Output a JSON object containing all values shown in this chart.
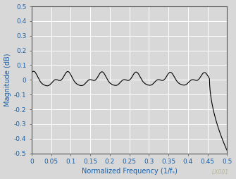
{
  "title": "",
  "xlabel": "Normalized Frequency (1/fₛ)",
  "ylabel": "Magnitude (dB)",
  "xlim": [
    0,
    0.5
  ],
  "ylim": [
    -0.5,
    0.5
  ],
  "xticks": [
    0,
    0.05,
    0.1,
    0.15,
    0.2,
    0.25,
    0.3,
    0.35,
    0.4,
    0.45,
    0.5
  ],
  "yticks": [
    -0.5,
    -0.4,
    -0.3,
    -0.2,
    -0.1,
    0.0,
    0.1,
    0.2,
    0.3,
    0.4,
    0.5
  ],
  "line_color": "#000000",
  "bg_color": "#d8d8d8",
  "plot_bg_color": "#d8d8d8",
  "grid_color": "#ffffff",
  "axis_label_color": "#1a5fa8",
  "tick_label_color": "#1a5fa8",
  "watermark": "LX001",
  "watermark_color": "#b8b89a"
}
